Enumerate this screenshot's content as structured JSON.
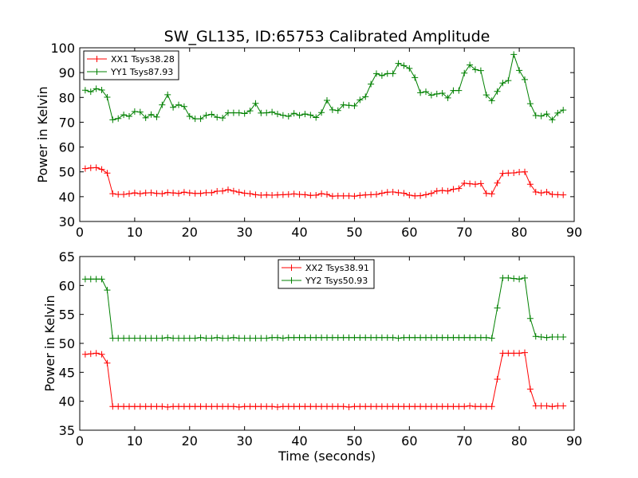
{
  "figure": {
    "title": "SW_GL135, ID:65753 Calibrated Amplitude"
  },
  "colors": {
    "red": "#ff0000",
    "green": "#008000"
  },
  "chart_data": [
    {
      "type": "line",
      "title": "SW_GL135, ID:65753 Calibrated Amplitude",
      "xlabel": "",
      "ylabel": "Power in Kelvin",
      "xlim": [
        0,
        90
      ],
      "ylim": [
        30,
        100
      ],
      "xticks": [
        "0",
        "10",
        "20",
        "30",
        "40",
        "50",
        "60",
        "70",
        "80",
        "90"
      ],
      "yticks": [
        "30",
        "40",
        "50",
        "60",
        "70",
        "80",
        "90",
        "100"
      ],
      "legend_position": "upper-left",
      "x": [
        1,
        2,
        3,
        4,
        5,
        6,
        7,
        8,
        9,
        10,
        11,
        12,
        13,
        14,
        15,
        16,
        17,
        18,
        19,
        20,
        21,
        22,
        23,
        24,
        25,
        26,
        27,
        28,
        29,
        30,
        31,
        32,
        33,
        34,
        35,
        36,
        37,
        38,
        39,
        40,
        41,
        42,
        43,
        44,
        45,
        46,
        47,
        48,
        49,
        50,
        51,
        52,
        53,
        54,
        55,
        56,
        57,
        58,
        59,
        60,
        61,
        62,
        63,
        64,
        65,
        66,
        67,
        68,
        69,
        70,
        71,
        72,
        73,
        74,
        75,
        76,
        77,
        78,
        79,
        80,
        81,
        82,
        83,
        84,
        85,
        86,
        87,
        88
      ],
      "series": [
        {
          "name": "XX1 Tsys38.28",
          "color": "#ff0000",
          "values": [
            51.3,
            51.6,
            51.7,
            51.0,
            49.5,
            41.2,
            40.9,
            40.9,
            41.2,
            41.5,
            41.2,
            41.5,
            41.6,
            41.3,
            41.2,
            41.7,
            41.5,
            41.3,
            41.8,
            41.5,
            41.3,
            41.3,
            41.6,
            41.6,
            42.2,
            42.3,
            42.8,
            42.3,
            41.8,
            41.4,
            41.2,
            40.8,
            40.6,
            40.7,
            40.6,
            40.7,
            40.8,
            40.9,
            41.1,
            40.9,
            40.8,
            40.5,
            40.6,
            41.2,
            40.9,
            40.2,
            40.3,
            40.3,
            40.3,
            40.2,
            40.5,
            40.7,
            40.8,
            40.9,
            41.4,
            41.8,
            41.9,
            41.6,
            41.4,
            40.6,
            40.3,
            40.4,
            40.8,
            41.3,
            42.3,
            42.5,
            42.3,
            43.0,
            43.3,
            45.4,
            45.2,
            45.0,
            45.3,
            41.3,
            41.1,
            45.5,
            49.4,
            49.5,
            49.6,
            49.9,
            50.0,
            45.0,
            41.9,
            41.5,
            41.9,
            40.9,
            40.8,
            40.7
          ]
        },
        {
          "name": "YY1 Tsys87.93",
          "color": "#008000",
          "values": [
            82.9,
            82.3,
            83.5,
            83.0,
            80.1,
            71.0,
            71.5,
            73.0,
            72.4,
            74.3,
            74.1,
            71.8,
            73.1,
            72.1,
            77.0,
            81.1,
            76.0,
            77.0,
            76.3,
            72.4,
            71.4,
            71.4,
            72.8,
            73.2,
            72.0,
            71.7,
            73.8,
            73.8,
            73.8,
            73.5,
            74.6,
            77.6,
            73.7,
            73.8,
            74.1,
            73.3,
            72.8,
            72.4,
            73.6,
            72.8,
            73.3,
            72.9,
            71.9,
            73.9,
            78.8,
            75.0,
            74.7,
            77.0,
            76.8,
            76.6,
            79.0,
            80.3,
            85.4,
            89.6,
            88.8,
            89.6,
            89.6,
            93.7,
            92.8,
            91.7,
            88.0,
            81.9,
            82.3,
            80.9,
            81.4,
            81.7,
            79.8,
            82.8,
            82.8,
            89.8,
            93.1,
            91.2,
            90.8,
            81.0,
            78.7,
            82.4,
            85.8,
            86.8,
            97.3,
            90.9,
            87.2,
            77.5,
            72.7,
            72.5,
            73.3,
            71.0,
            73.7,
            74.9
          ]
        }
      ]
    },
    {
      "type": "line",
      "title": "",
      "xlabel": "Time (seconds)",
      "ylabel": "Power in Kelvin",
      "xlim": [
        0,
        90
      ],
      "ylim": [
        35,
        65
      ],
      "xticks": [
        "0",
        "10",
        "20",
        "30",
        "40",
        "50",
        "60",
        "70",
        "80",
        "90"
      ],
      "yticks": [
        "35",
        "40",
        "45",
        "50",
        "55",
        "60",
        "65"
      ],
      "legend_position": "upper-center",
      "x": [
        1,
        2,
        3,
        4,
        5,
        6,
        7,
        8,
        9,
        10,
        11,
        12,
        13,
        14,
        15,
        16,
        17,
        18,
        19,
        20,
        21,
        22,
        23,
        24,
        25,
        26,
        27,
        28,
        29,
        30,
        31,
        32,
        33,
        34,
        35,
        36,
        37,
        38,
        39,
        40,
        41,
        42,
        43,
        44,
        45,
        46,
        47,
        48,
        49,
        50,
        51,
        52,
        53,
        54,
        55,
        56,
        57,
        58,
        59,
        60,
        61,
        62,
        63,
        64,
        65,
        66,
        67,
        68,
        69,
        70,
        71,
        72,
        73,
        74,
        75,
        76,
        77,
        78,
        79,
        80,
        81,
        82,
        83,
        84,
        85,
        86,
        87,
        88
      ],
      "series": [
        {
          "name": "XX2 Tsys38.91",
          "color": "#ff0000",
          "values": [
            48.1,
            48.2,
            48.3,
            48.1,
            46.6,
            39.1,
            39.1,
            39.1,
            39.1,
            39.1,
            39.1,
            39.1,
            39.1,
            39.1,
            39.1,
            39.0,
            39.1,
            39.1,
            39.1,
            39.1,
            39.1,
            39.1,
            39.1,
            39.1,
            39.1,
            39.1,
            39.1,
            39.1,
            39.0,
            39.1,
            39.1,
            39.1,
            39.1,
            39.1,
            39.1,
            39.0,
            39.1,
            39.1,
            39.1,
            39.1,
            39.1,
            39.1,
            39.1,
            39.1,
            39.1,
            39.1,
            39.1,
            39.1,
            39.0,
            39.1,
            39.1,
            39.1,
            39.1,
            39.1,
            39.1,
            39.1,
            39.1,
            39.1,
            39.1,
            39.1,
            39.1,
            39.1,
            39.1,
            39.1,
            39.1,
            39.1,
            39.1,
            39.1,
            39.1,
            39.1,
            39.2,
            39.1,
            39.1,
            39.1,
            39.1,
            43.8,
            48.3,
            48.3,
            48.3,
            48.3,
            48.4,
            42.1,
            39.2,
            39.2,
            39.2,
            39.1,
            39.2,
            39.2
          ]
        },
        {
          "name": "YY2 Tsys50.93",
          "color": "#008000",
          "values": [
            61.1,
            61.1,
            61.1,
            61.1,
            59.2,
            50.9,
            50.9,
            50.9,
            50.9,
            50.9,
            50.9,
            50.9,
            50.9,
            50.9,
            50.9,
            51.0,
            50.9,
            50.9,
            50.9,
            50.9,
            50.9,
            51.0,
            50.9,
            50.9,
            51.0,
            50.9,
            50.9,
            51.0,
            50.9,
            50.9,
            50.9,
            50.9,
            50.9,
            50.9,
            51.0,
            51.0,
            50.9,
            51.0,
            51.0,
            51.0,
            51.0,
            51.0,
            51.0,
            51.0,
            51.0,
            51.0,
            51.0,
            51.0,
            51.0,
            51.0,
            51.0,
            51.0,
            51.0,
            51.0,
            51.0,
            51.0,
            51.0,
            50.9,
            51.0,
            51.0,
            51.0,
            51.0,
            51.0,
            51.0,
            51.0,
            51.0,
            51.0,
            51.0,
            51.0,
            51.0,
            51.0,
            51.0,
            51.0,
            51.0,
            50.9,
            56.1,
            61.3,
            61.3,
            61.2,
            61.1,
            61.3,
            54.3,
            51.2,
            51.1,
            51.0,
            51.1,
            51.1,
            51.1
          ]
        }
      ]
    }
  ]
}
